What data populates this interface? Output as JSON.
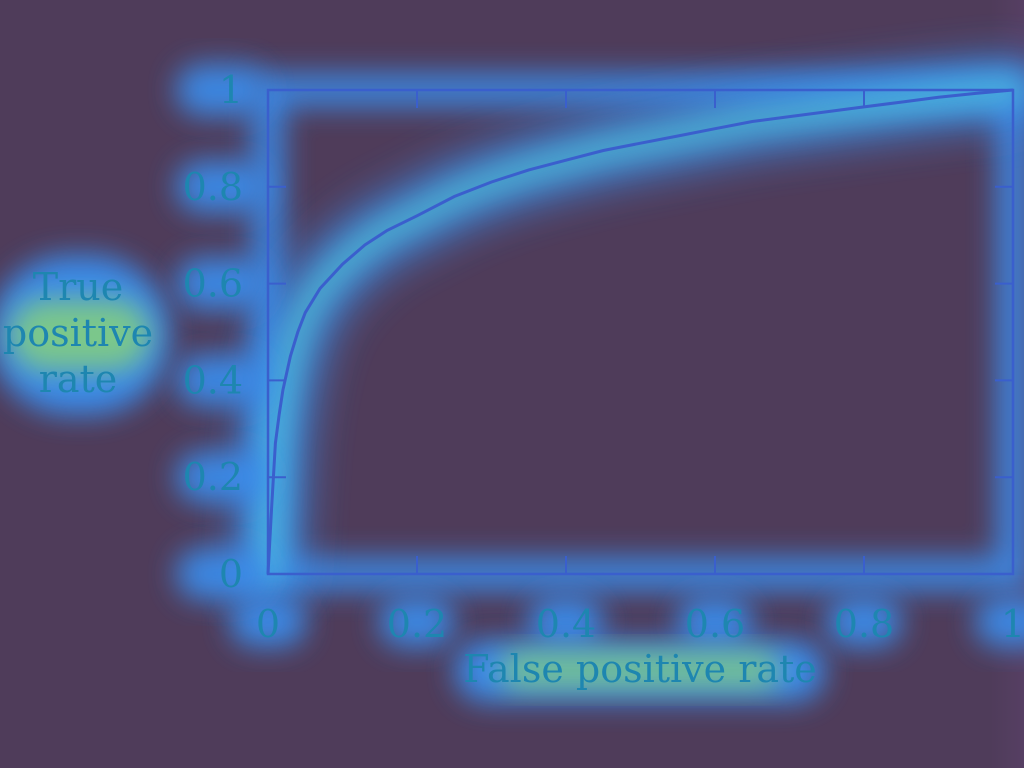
{
  "colors": {
    "background": "#4f3c5a",
    "axis": "#3a5fcd",
    "text": "#1e86b0",
    "glow_outer": "#3b8ff0",
    "glow_inner": "#5fe9c9",
    "glow_core": "#a6f14e"
  },
  "chart_data": {
    "type": "line",
    "title": "",
    "xlabel": "False positive rate",
    "ylabel": "True positive rate",
    "ylabel_lines": [
      "True",
      "positive",
      "rate"
    ],
    "xlim": [
      0,
      1
    ],
    "ylim": [
      0,
      1
    ],
    "xticks": [
      0,
      0.2,
      0.4,
      0.6,
      0.8,
      1
    ],
    "yticks": [
      0,
      0.2,
      0.4,
      0.6,
      0.8,
      1
    ],
    "xtick_labels": [
      "0",
      "0.2",
      "0.4",
      "0.6",
      "0.8",
      "1"
    ],
    "ytick_labels": [
      "0",
      "0.2",
      "0.4",
      "0.6",
      "0.8",
      "1"
    ],
    "grid": false,
    "legend": "none",
    "series": [
      {
        "x": [
          0,
          0.005,
          0.01,
          0.015,
          0.02,
          0.03,
          0.04,
          0.05,
          0.07,
          0.1,
          0.13,
          0.16,
          0.2,
          0.25,
          0.3,
          0.35,
          0.4,
          0.45,
          0.5,
          0.55,
          0.6,
          0.65,
          0.7,
          0.75,
          0.8,
          0.85,
          0.9,
          0.95,
          1.0
        ],
        "y": [
          0,
          0.14,
          0.27,
          0.33,
          0.38,
          0.45,
          0.5,
          0.54,
          0.59,
          0.64,
          0.68,
          0.71,
          0.74,
          0.78,
          0.81,
          0.835,
          0.855,
          0.875,
          0.89,
          0.905,
          0.92,
          0.935,
          0.945,
          0.955,
          0.965,
          0.975,
          0.985,
          0.993,
          1.0
        ]
      }
    ]
  }
}
